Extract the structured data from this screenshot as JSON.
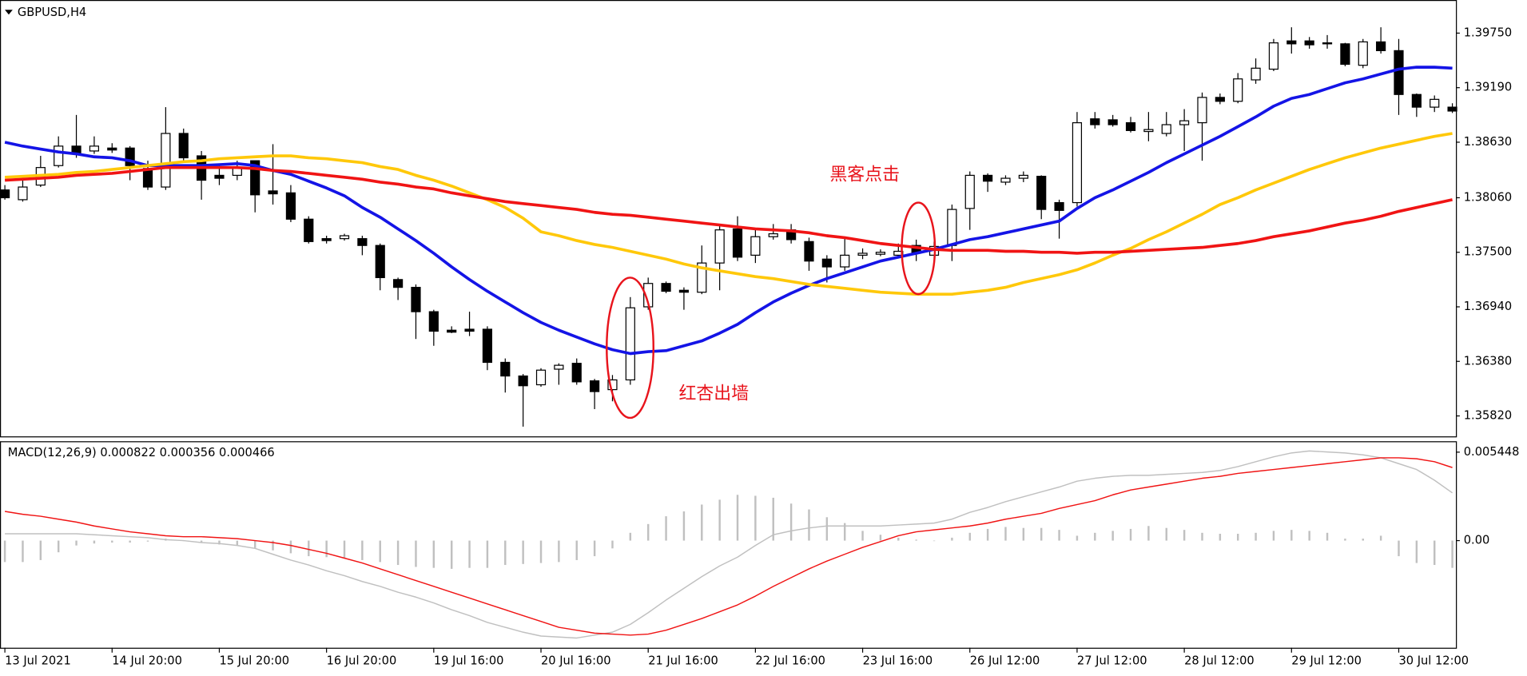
{
  "chart_data": [
    {
      "type": "candlestick",
      "title": "GBPUSD,H4",
      "categories": [
        "13 Jul 2021",
        null,
        null,
        null,
        null,
        null,
        "14 Jul 20:00",
        null,
        null,
        null,
        null,
        null,
        "15 Jul 20:00",
        null,
        null,
        null,
        null,
        null,
        "16 Jul 20:00",
        null,
        null,
        null,
        null,
        null,
        "19 Jul 16:00",
        null,
        null,
        null,
        null,
        null,
        "20 Jul 16:00",
        null,
        null,
        null,
        null,
        null,
        "21 Jul 16:00",
        null,
        null,
        null,
        null,
        null,
        "22 Jul 16:00",
        null,
        null,
        null,
        null,
        null,
        "23 Jul 16:00",
        null,
        null,
        null,
        null,
        null,
        "26 Jul 12:00",
        null,
        null,
        null,
        null,
        null,
        "27 Jul 12:00",
        null,
        null,
        null,
        null,
        null,
        "28 Jul 12:00",
        null,
        null,
        null,
        null,
        null,
        "29 Jul 12:00",
        null,
        null,
        null,
        null,
        null,
        "30 Jul 12:00",
        null,
        null,
        null
      ],
      "open": [
        1.3814,
        1.3804,
        1.3819,
        1.3839,
        1.3859,
        1.3854,
        1.3857,
        1.3857,
        1.3836,
        1.3817,
        1.3872,
        1.3849,
        1.3829,
        1.3829,
        1.3844,
        1.3813,
        1.3811,
        1.3784,
        1.3764,
        1.3764,
        1.3764,
        1.3757,
        1.3722,
        1.3714,
        1.3689,
        1.367,
        1.3671,
        1.3671,
        1.3637,
        1.3623,
        1.3614,
        1.363,
        1.3636,
        1.3618,
        1.3609,
        1.3619,
        1.3694,
        1.3718,
        1.3711,
        1.3709,
        1.3739,
        1.3774,
        1.3747,
        1.3766,
        1.3773,
        1.3761,
        1.3743,
        1.3735,
        1.3747,
        1.3748,
        1.3747,
        1.3757,
        1.3747,
        1.3757,
        1.3795,
        1.3829,
        1.3822,
        1.3826,
        1.3828,
        1.3801,
        1.3801,
        1.3887,
        1.3886,
        1.3883,
        1.3874,
        1.3872,
        1.3881,
        1.3883,
        1.3909,
        1.3905,
        1.3927,
        1.3938,
        1.3967,
        1.3967,
        1.3965,
        1.3964,
        1.3942,
        1.3966,
        1.3957,
        1.3912,
        1.3899,
        1.3899
      ],
      "high": [
        1.3819,
        1.3824,
        1.3849,
        1.3869,
        1.3891,
        1.3869,
        1.3862,
        1.3859,
        1.3844,
        1.3899,
        1.3877,
        1.3854,
        1.3839,
        1.3844,
        1.3844,
        1.3861,
        1.3819,
        1.3787,
        1.3767,
        1.3769,
        1.3767,
        1.3759,
        1.3724,
        1.3717,
        1.3691,
        1.3674,
        1.3689,
        1.3674,
        1.3641,
        1.3625,
        1.3631,
        1.3636,
        1.3641,
        1.362,
        1.3624,
        1.3704,
        1.3724,
        1.372,
        1.3714,
        1.3757,
        1.3777,
        1.3787,
        1.3774,
        1.3779,
        1.3779,
        1.3765,
        1.3747,
        1.3764,
        1.3754,
        1.3753,
        1.3759,
        1.3763,
        1.3761,
        1.3799,
        1.3833,
        1.3831,
        1.3829,
        1.3833,
        1.3829,
        1.3804,
        1.3894,
        1.3894,
        1.3891,
        1.3889,
        1.3894,
        1.3894,
        1.3897,
        1.3914,
        1.3913,
        1.3934,
        1.3949,
        1.3969,
        1.3981,
        1.3971,
        1.3973,
        1.3965,
        1.3969,
        1.3981,
        1.3969,
        1.3913,
        1.3911,
        1.3903
      ],
      "low": [
        1.3804,
        1.3802,
        1.3817,
        1.3837,
        1.3847,
        1.3851,
        1.3852,
        1.3824,
        1.3814,
        1.3814,
        1.3844,
        1.3804,
        1.3819,
        1.3824,
        1.3791,
        1.3799,
        1.3781,
        1.3759,
        1.3759,
        1.3762,
        1.3747,
        1.3711,
        1.3701,
        1.3661,
        1.3654,
        1.3667,
        1.3664,
        1.3629,
        1.3606,
        1.3571,
        1.3612,
        1.3614,
        1.3614,
        1.3589,
        1.3597,
        1.3614,
        1.3691,
        1.3708,
        1.3691,
        1.3707,
        1.3711,
        1.3741,
        1.3739,
        1.3763,
        1.3759,
        1.3731,
        1.3719,
        1.3731,
        1.3743,
        1.3746,
        1.3744,
        1.3741,
        1.3743,
        1.3741,
        1.3773,
        1.3812,
        1.3819,
        1.3822,
        1.3784,
        1.3764,
        1.3797,
        1.3877,
        1.3879,
        1.3873,
        1.3864,
        1.3869,
        1.3854,
        1.3844,
        1.3902,
        1.3903,
        1.3923,
        1.3936,
        1.3954,
        1.3959,
        1.3959,
        1.3941,
        1.3939,
        1.3954,
        1.3891,
        1.3889,
        1.3894,
        1.3893
      ],
      "close": [
        1.3806,
        1.3817,
        1.3837,
        1.3859,
        1.3852,
        1.3859,
        1.3855,
        1.3839,
        1.3817,
        1.3872,
        1.3847,
        1.3824,
        1.3826,
        1.3837,
        1.3809,
        1.381,
        1.3784,
        1.3761,
        1.3762,
        1.3767,
        1.3757,
        1.3724,
        1.3714,
        1.3689,
        1.3669,
        1.3668,
        1.3669,
        1.3637,
        1.3623,
        1.3613,
        1.3629,
        1.3634,
        1.3617,
        1.3607,
        1.3619,
        1.3693,
        1.3718,
        1.371,
        1.3709,
        1.3739,
        1.3773,
        1.3745,
        1.3766,
        1.3769,
        1.3763,
        1.3741,
        1.3735,
        1.3747,
        1.3749,
        1.375,
        1.3751,
        1.3749,
        1.3756,
        1.3794,
        1.3829,
        1.3823,
        1.3826,
        1.3829,
        1.3794,
        1.3793,
        1.3883,
        1.3881,
        1.3881,
        1.3875,
        1.3876,
        1.3881,
        1.3885,
        1.3909,
        1.3905,
        1.3928,
        1.3939,
        1.3965,
        1.3964,
        1.3963,
        1.3964,
        1.3943,
        1.3966,
        1.3957,
        1.3912,
        1.3899,
        1.3907,
        1.3895
      ],
      "color": "#000000",
      "up_color": "#ffffff",
      "down_color": "#000000",
      "series": [
        {
          "type": "line",
          "color": "#1414e6",
          "values": [
            1.3863,
            1.3859,
            1.3856,
            1.3853,
            1.3851,
            1.3848,
            1.3847,
            1.3844,
            1.3839,
            1.3839,
            1.3839,
            1.3839,
            1.384,
            1.3841,
            1.3839,
            1.3834,
            1.383,
            1.3823,
            1.3816,
            1.3808,
            1.3796,
            1.3786,
            1.3774,
            1.3762,
            1.3749,
            1.3735,
            1.3722,
            1.371,
            1.3699,
            1.3688,
            1.3678,
            1.367,
            1.3663,
            1.3656,
            1.365,
            1.3646,
            1.3648,
            1.3649,
            1.3654,
            1.3659,
            1.3667,
            1.3676,
            1.3688,
            1.3699,
            1.3708,
            1.3716,
            1.3723,
            1.3729,
            1.3735,
            1.3741,
            1.3745,
            1.3749,
            1.3753,
            1.3758,
            1.3763,
            1.3766,
            1.377,
            1.3774,
            1.3778,
            1.3782,
            1.3795,
            1.3806,
            1.3814,
            1.3823,
            1.3832,
            1.3842,
            1.3851,
            1.386,
            1.3869,
            1.3879,
            1.3889,
            1.39,
            1.3908,
            1.3912,
            1.3918,
            1.3924,
            1.3928,
            1.3933,
            1.3938,
            1.394,
            1.394,
            1.3939
          ]
        },
        {
          "type": "line",
          "color": "#ffc80a",
          "values": [
            1.3827,
            1.3828,
            1.3829,
            1.383,
            1.3832,
            1.3833,
            1.3835,
            1.3837,
            1.3839,
            1.3841,
            1.3843,
            1.3844,
            1.3846,
            1.3847,
            1.3848,
            1.3849,
            1.3849,
            1.3847,
            1.3846,
            1.3844,
            1.3842,
            1.3838,
            1.3835,
            1.3829,
            1.3824,
            1.3818,
            1.3811,
            1.3804,
            1.3796,
            1.3785,
            1.3771,
            1.3767,
            1.3762,
            1.3758,
            1.3755,
            1.3751,
            1.3747,
            1.3743,
            1.3738,
            1.3734,
            1.3731,
            1.3728,
            1.3725,
            1.3723,
            1.372,
            1.3717,
            1.3715,
            1.3713,
            1.3711,
            1.3709,
            1.3708,
            1.3707,
            1.3707,
            1.3707,
            1.3709,
            1.3711,
            1.3714,
            1.3719,
            1.3723,
            1.3727,
            1.3732,
            1.3739,
            1.3747,
            1.3754,
            1.3763,
            1.3771,
            1.378,
            1.3789,
            1.3799,
            1.3806,
            1.3814,
            1.3821,
            1.3828,
            1.3835,
            1.3841,
            1.3847,
            1.3852,
            1.3857,
            1.3861,
            1.3865,
            1.3869,
            1.3872
          ]
        },
        {
          "type": "line",
          "color": "#f01414",
          "values": [
            1.3824,
            1.3825,
            1.3826,
            1.3827,
            1.3829,
            1.383,
            1.3831,
            1.3833,
            1.3835,
            1.3837,
            1.3837,
            1.3837,
            1.3837,
            1.3837,
            1.3836,
            1.3834,
            1.3833,
            1.3831,
            1.3829,
            1.3827,
            1.3825,
            1.3822,
            1.382,
            1.3817,
            1.3815,
            1.3811,
            1.3808,
            1.3805,
            1.3802,
            1.38,
            1.3798,
            1.3796,
            1.3794,
            1.3791,
            1.3789,
            1.3788,
            1.3786,
            1.3784,
            1.3782,
            1.378,
            1.3778,
            1.3776,
            1.3774,
            1.3773,
            1.3772,
            1.377,
            1.3767,
            1.3765,
            1.3762,
            1.3759,
            1.3757,
            1.3755,
            1.3753,
            1.3752,
            1.3752,
            1.3752,
            1.3751,
            1.3751,
            1.375,
            1.375,
            1.3749,
            1.375,
            1.375,
            1.3751,
            1.3752,
            1.3753,
            1.3754,
            1.3755,
            1.3757,
            1.3759,
            1.3762,
            1.3766,
            1.3769,
            1.3772,
            1.3776,
            1.378,
            1.3783,
            1.3787,
            1.3792,
            1.3796,
            1.38,
            1.3804
          ]
        }
      ],
      "ylim": [
        1.3561,
        1.4009
      ],
      "yticks": [
        {
          "value": 1.3975,
          "label": "1.39750"
        },
        {
          "value": 1.3919,
          "label": "1.39190"
        },
        {
          "value": 1.3863,
          "label": "1.38630"
        },
        {
          "value": 1.3806,
          "label": "1.38060"
        },
        {
          "value": 1.375,
          "label": "1.37500"
        },
        {
          "value": 1.3694,
          "label": "1.36940"
        },
        {
          "value": 1.3638,
          "label": "1.36380"
        },
        {
          "value": 1.3582,
          "label": "1.35820"
        }
      ],
      "grid": false,
      "annotations": [
        "黑客点击",
        "红杏出墙"
      ]
    },
    {
      "type": "macd",
      "title": "MACD(12,26,9) 0.000822 0.000356 0.000466",
      "series": [
        {
          "type": "bar",
          "color": "#c0c0c0",
          "values": [
            -0.00132,
            -0.00132,
            -0.0012,
            -0.00072,
            -0.0003,
            -0.00018,
            -0.00012,
            -0.00012,
            -6e-05,
            0.00012,
            0,
            -0.00012,
            -0.00024,
            -0.0003,
            -0.00048,
            -0.0006,
            -0.00078,
            -0.00096,
            -0.00102,
            -0.00108,
            -0.0012,
            -0.00132,
            -0.0015,
            -0.00162,
            -0.00168,
            -0.00174,
            -0.00168,
            -0.00168,
            -0.0015,
            -0.00144,
            -0.00138,
            -0.00132,
            -0.0012,
            -0.00096,
            -0.00048,
            0.00048,
            0.00102,
            0.0015,
            0.0018,
            0.00222,
            0.00252,
            0.00282,
            0.00276,
            0.00264,
            0.00228,
            0.00192,
            0.00144,
            0.00108,
            0.0006,
            0.00036,
            0.00018,
            6e-05,
            0,
            0.00018,
            0.00048,
            0.00072,
            0.00084,
            0.00078,
            0.00078,
            0.00066,
            0.0003,
            0.00048,
            0.0006,
            0.00072,
            0.0009,
            0.00078,
            0.00066,
            0.00048,
            0.00042,
            0.00042,
            0.00048,
            0.0006,
            0.00066,
            0.0006,
            0.00048,
            0.00012,
            0.00012,
            0.0003,
            -0.00096,
            -0.00138,
            -0.0015,
            -0.00168
          ]
        },
        {
          "type": "line",
          "color": "#c0c0c0",
          "values": [
            0.00042,
            0.00042,
            0.00042,
            0.00042,
            0.00042,
            0.00036,
            0.0003,
            0.00024,
            0.00018,
            6e-05,
            0,
            -0.00012,
            -0.00018,
            -0.0003,
            -0.00048,
            -0.00084,
            -0.0012,
            -0.0015,
            -0.00186,
            -0.00216,
            -0.00252,
            -0.00282,
            -0.00318,
            -0.00348,
            -0.00384,
            -0.00426,
            -0.00462,
            -0.00504,
            -0.00534,
            -0.00564,
            -0.00588,
            -0.00594,
            -0.006,
            -0.00582,
            -0.00564,
            -0.00516,
            -0.00444,
            -0.00366,
            -0.00294,
            -0.00222,
            -0.00156,
            -0.00102,
            -0.0003,
            0.00036,
            0.0006,
            0.00078,
            0.0009,
            0.0009,
            0.0009,
            0.0009,
            0.00096,
            0.00102,
            0.00108,
            0.00132,
            0.00174,
            0.00204,
            0.0024,
            0.0027,
            0.003,
            0.0033,
            0.00366,
            0.00384,
            0.00396,
            0.00402,
            0.00402,
            0.00408,
            0.00414,
            0.0042,
            0.00432,
            0.00456,
            0.00486,
            0.00516,
            0.0054,
            0.00552,
            0.00546,
            0.0054,
            0.00528,
            0.0051,
            0.00474,
            0.00438,
            0.00372,
            0.00294
          ]
        },
        {
          "type": "line",
          "color": "#f01414",
          "values": [
            0.0018,
            0.00162,
            0.0015,
            0.00132,
            0.00114,
            0.0009,
            0.00072,
            0.00054,
            0.00042,
            0.0003,
            0.00024,
            0.00024,
            0.00018,
            0.00012,
            0,
            -0.00012,
            -0.0003,
            -0.00054,
            -0.00078,
            -0.00108,
            -0.00138,
            -0.00174,
            -0.0021,
            -0.00246,
            -0.00282,
            -0.00318,
            -0.00354,
            -0.0039,
            -0.00426,
            -0.00462,
            -0.00498,
            -0.00534,
            -0.00552,
            -0.0057,
            -0.00576,
            -0.00582,
            -0.00576,
            -0.00552,
            -0.00516,
            -0.0048,
            -0.00438,
            -0.00396,
            -0.00342,
            -0.00282,
            -0.00228,
            -0.00174,
            -0.00126,
            -0.00084,
            -0.00042,
            -6e-05,
            0.0003,
            0.00054,
            0.00066,
            0.00078,
            0.0009,
            0.00108,
            0.00132,
            0.0015,
            0.00168,
            0.00198,
            0.00222,
            0.00246,
            0.00282,
            0.00312,
            0.0033,
            0.00348,
            0.00366,
            0.00384,
            0.00396,
            0.00414,
            0.00426,
            0.00438,
            0.0045,
            0.00462,
            0.00474,
            0.00486,
            0.00498,
            0.0051,
            0.0051,
            0.00504,
            0.00486,
            0.0045
          ]
        }
      ],
      "ylim": [
        -0.0066,
        0.006
      ],
      "yticks": [
        0.005448,
        {
          "value": 0,
          "label": "0.00"
        }
      ],
      "grid": false
    }
  ]
}
